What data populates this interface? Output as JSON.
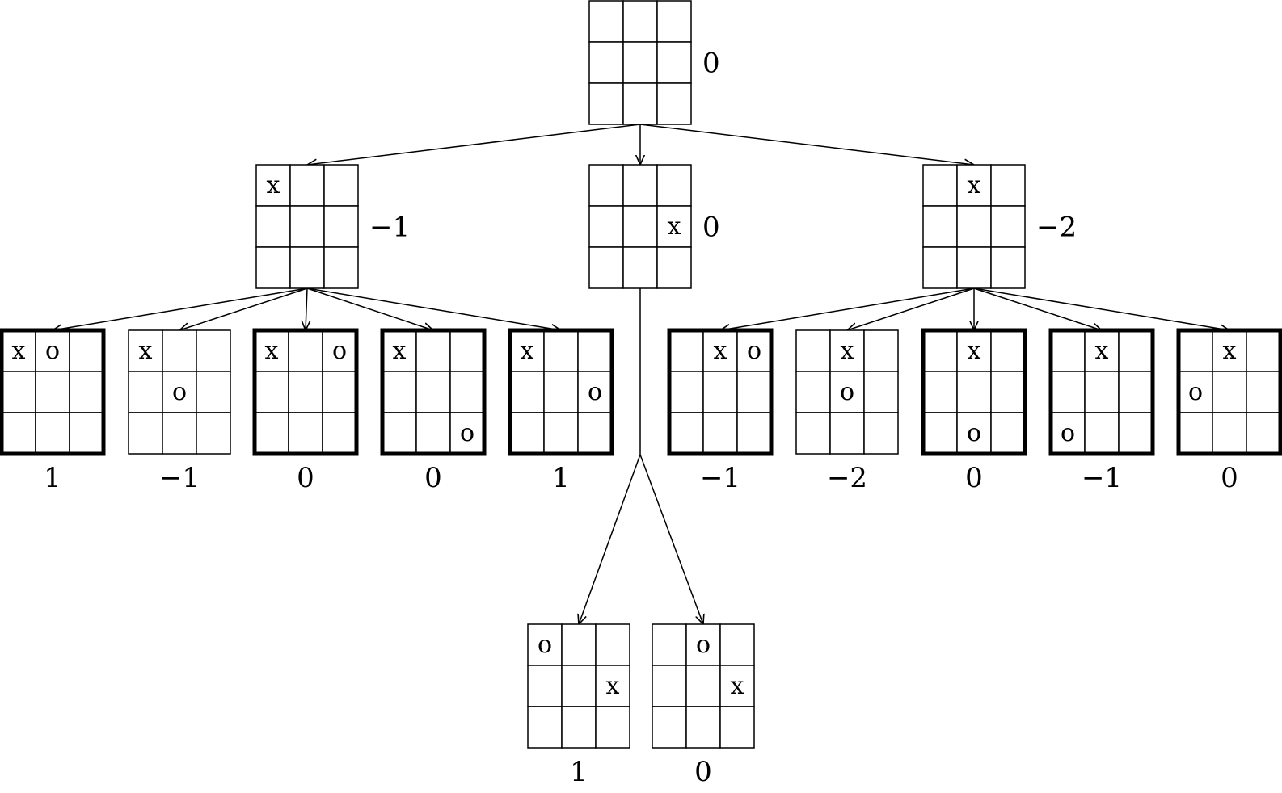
{
  "tree": {
    "root": {
      "marks": [
        "",
        "",
        "",
        "",
        "",
        "",
        "",
        "",
        ""
      ],
      "score": "0",
      "bold": false
    },
    "level1": [
      {
        "marks": [
          "x",
          "",
          "",
          "",
          "",
          "",
          "",
          "",
          ""
        ],
        "score": "−1",
        "bold": false
      },
      {
        "marks": [
          "",
          "",
          "",
          "",
          "",
          "x",
          "",
          "",
          ""
        ],
        "score": "0",
        "bold": false
      },
      {
        "marks": [
          "",
          "x",
          "",
          "",
          "",
          "",
          "",
          "",
          ""
        ],
        "score": "−2",
        "bold": false
      }
    ],
    "level2_left": [
      {
        "marks": [
          "x",
          "o",
          "",
          "",
          "",
          "",
          "",
          "",
          ""
        ],
        "score": "1",
        "bold": true
      },
      {
        "marks": [
          "x",
          "",
          "",
          "",
          "o",
          "",
          "",
          "",
          ""
        ],
        "score": "−1",
        "bold": false
      },
      {
        "marks": [
          "x",
          "",
          "o",
          "",
          "",
          "",
          "",
          "",
          ""
        ],
        "score": "0",
        "bold": true
      },
      {
        "marks": [
          "x",
          "",
          "",
          "",
          "",
          "",
          "",
          "",
          "o"
        ],
        "score": "0",
        "bold": true
      },
      {
        "marks": [
          "x",
          "",
          "",
          "",
          "",
          "o",
          "",
          "",
          ""
        ],
        "score": "1",
        "bold": true
      }
    ],
    "level2_right": [
      {
        "marks": [
          "",
          "x",
          "o",
          "",
          "",
          "",
          "",
          "",
          ""
        ],
        "score": "−1",
        "bold": true
      },
      {
        "marks": [
          "",
          "x",
          "",
          "",
          "o",
          "",
          "",
          "",
          ""
        ],
        "score": "−2",
        "bold": false
      },
      {
        "marks": [
          "",
          "x",
          "",
          "",
          "",
          "",
          "",
          "o",
          ""
        ],
        "score": "0",
        "bold": true
      },
      {
        "marks": [
          "",
          "x",
          "",
          "",
          "",
          "",
          "o",
          "",
          ""
        ],
        "score": "−1",
        "bold": true
      },
      {
        "marks": [
          "",
          "x",
          "",
          "o",
          "",
          "",
          "",
          "",
          ""
        ],
        "score": "0",
        "bold": true
      }
    ],
    "level2_center": [
      {
        "marks": [
          "o",
          "",
          "",
          "",
          "",
          "x",
          "",
          "",
          ""
        ],
        "score": "1",
        "bold": false
      },
      {
        "marks": [
          "",
          "o",
          "",
          "",
          "",
          "x",
          "",
          "",
          ""
        ],
        "score": "0",
        "bold": false
      }
    ]
  }
}
